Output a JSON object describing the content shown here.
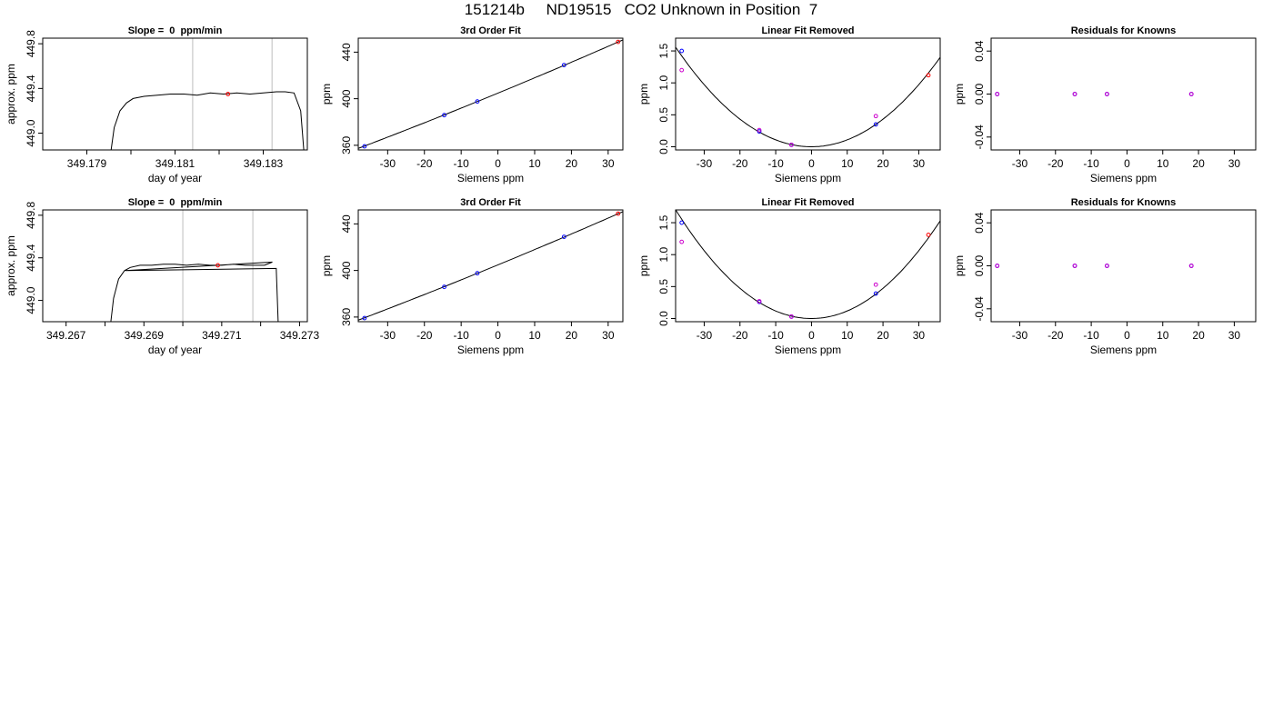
{
  "page": {
    "title": "151214b     ND19515   CO2 Unknown in Position  7"
  },
  "colors": {
    "known": "#0000ff",
    "unknown": "#ff0000",
    "residual": "#cc00cc",
    "fit_line": "#000000",
    "window_lines": "#c8c8c8"
  },
  "chart_data": [
    {
      "type": "line",
      "title": "Slope =  0  ppm/min",
      "xlabel": "day of year",
      "ylabel": "approx. ppm",
      "xlim": [
        349.178,
        349.184
      ],
      "ylim": [
        448.85,
        449.85
      ],
      "xticks": [
        349.179,
        349.181,
        349.183
      ],
      "xticks_minor": [
        349.18,
        349.182
      ],
      "yticks": [
        449.0,
        449.4,
        449.8
      ],
      "ytick_labels": [
        "449.0",
        "449.4",
        "449.8"
      ],
      "vlines": [
        349.1814,
        349.1832
      ],
      "series": [
        {
          "x": [
            349.17955,
            349.17962,
            349.17975,
            349.1799,
            349.18005,
            349.1803,
            349.1806,
            349.1809,
            349.1812,
            349.1815,
            349.1818,
            349.1821,
            349.1824,
            349.1827,
            349.183,
            349.1833,
            349.1835,
            349.1837,
            349.18385,
            349.18392
          ],
          "y": [
            448.85,
            449.05,
            449.2,
            449.27,
            449.31,
            449.33,
            449.34,
            449.35,
            449.35,
            449.34,
            449.36,
            449.35,
            449.36,
            449.35,
            449.36,
            449.37,
            449.37,
            449.36,
            449.2,
            448.85
          ]
        }
      ],
      "points": [
        {
          "x": 349.1822,
          "y": 449.35,
          "color": "unknown"
        }
      ]
    },
    {
      "type": "scatter",
      "title": "3rd Order Fit",
      "xlabel": "Siemens ppm",
      "ylabel": "ppm",
      "xlim": [
        -38,
        34
      ],
      "ylim": [
        356,
        452
      ],
      "xticks": [
        -30,
        -20,
        -10,
        0,
        10,
        20,
        30
      ],
      "yticks": [
        360,
        400,
        440
      ],
      "fit": {
        "coef": [
          404.8,
          1.3,
          0.00132,
          0
        ]
      },
      "points": [
        {
          "x": -36.3,
          "y": 359.1,
          "color": "known"
        },
        {
          "x": -14.6,
          "y": 385.9,
          "color": "known"
        },
        {
          "x": -5.6,
          "y": 397.6,
          "color": "known"
        },
        {
          "x": 18.0,
          "y": 428.9,
          "color": "known"
        },
        {
          "x": 32.7,
          "y": 448.8,
          "color": "unknown"
        }
      ]
    },
    {
      "type": "scatter",
      "title": "Linear Fit Removed",
      "xlabel": "Siemens ppm",
      "ylabel": "ppm",
      "xlim": [
        -38,
        36
      ],
      "ylim": [
        -0.05,
        1.7
      ],
      "xticks": [
        -30,
        -20,
        -10,
        0,
        10,
        20,
        30
      ],
      "yticks": [
        0.0,
        0.5,
        1.0,
        1.5
      ],
      "ytick_labels": [
        "0.0",
        "0.5",
        "1.0",
        "1.5"
      ],
      "fit": {
        "coef": [
          0,
          0,
          0.00108,
          0
        ]
      },
      "points": [
        {
          "x": -36.3,
          "y": 1.5,
          "color": "known"
        },
        {
          "x": -14.6,
          "y": 0.24,
          "color": "known"
        },
        {
          "x": -5.6,
          "y": 0.03,
          "color": "known"
        },
        {
          "x": 18.0,
          "y": 0.35,
          "color": "known"
        },
        {
          "x": -36.3,
          "y": 1.2,
          "color": "residual"
        },
        {
          "x": -14.6,
          "y": 0.26,
          "color": "residual"
        },
        {
          "x": -5.6,
          "y": 0.03,
          "color": "residual"
        },
        {
          "x": 18.0,
          "y": 0.48,
          "color": "residual"
        },
        {
          "x": 32.7,
          "y": 1.12,
          "color": "unknown"
        }
      ]
    },
    {
      "type": "scatter",
      "title": "Residuals for Knowns",
      "xlabel": "Siemens ppm",
      "ylabel": "ppm",
      "xlim": [
        -38,
        36
      ],
      "ylim": [
        -0.052,
        0.052
      ],
      "xticks": [
        -30,
        -20,
        -10,
        0,
        10,
        20,
        30
      ],
      "yticks": [
        -0.04,
        0.0,
        0.04
      ],
      "ytick_labels": [
        "-0.04",
        "0.00",
        "0.04"
      ],
      "points": [
        {
          "x": -36.3,
          "y": 0,
          "color": "known"
        },
        {
          "x": -14.6,
          "y": 0,
          "color": "known"
        },
        {
          "x": -5.6,
          "y": 0,
          "color": "known"
        },
        {
          "x": 18.0,
          "y": 0,
          "color": "known"
        },
        {
          "x": -36.3,
          "y": 0,
          "color": "residual"
        },
        {
          "x": -14.6,
          "y": 0,
          "color": "residual"
        },
        {
          "x": -5.6,
          "y": 0,
          "color": "residual"
        },
        {
          "x": 18.0,
          "y": 0,
          "color": "residual"
        }
      ]
    },
    {
      "type": "line",
      "title": "Slope =  0  ppm/min",
      "xlabel": "day of year",
      "ylabel": "approx. ppm",
      "xlim": [
        349.2664,
        349.2732
      ],
      "ylim": [
        448.8,
        449.85
      ],
      "xticks": [
        349.267,
        349.269,
        349.271,
        349.273
      ],
      "xticks_minor": [
        349.268,
        349.27,
        349.272
      ],
      "yticks": [
        449.0,
        449.4,
        449.8
      ],
      "ytick_labels": [
        "449.0",
        "449.4",
        "449.8"
      ],
      "vlines": [
        349.27,
        349.2718
      ],
      "series": [
        {
          "x": [
            349.26815,
            349.26822,
            349.26835,
            349.2685,
            349.26865,
            349.2689,
            349.2692,
            349.2695,
            349.2698,
            349.2701,
            349.2704,
            349.2707,
            349.271,
            349.2713,
            349.2716,
            349.2719,
            349.2721,
            349.2723,
            349.26852,
            349.2724,
            349.27245
          ],
          "y": [
            448.8,
            449.02,
            449.2,
            449.28,
            449.31,
            449.33,
            449.33,
            449.34,
            449.34,
            449.33,
            449.34,
            449.33,
            449.33,
            449.34,
            449.33,
            449.33,
            449.33,
            449.36,
            449.28,
            449.3,
            448.8
          ]
        }
      ],
      "points": [
        {
          "x": 349.2709,
          "y": 449.33,
          "color": "unknown"
        }
      ]
    },
    {
      "type": "scatter",
      "title": "3rd Order Fit",
      "xlabel": "Siemens ppm",
      "ylabel": "ppm",
      "xlim": [
        -38,
        34
      ],
      "ylim": [
        356,
        452
      ],
      "xticks": [
        -30,
        -20,
        -10,
        0,
        10,
        20,
        30
      ],
      "yticks": [
        360,
        400,
        440
      ],
      "fit": {
        "coef": [
          404.8,
          1.3,
          0.00132,
          0
        ]
      },
      "points": [
        {
          "x": -36.3,
          "y": 359.1,
          "color": "known"
        },
        {
          "x": -14.6,
          "y": 385.9,
          "color": "known"
        },
        {
          "x": -5.6,
          "y": 397.6,
          "color": "known"
        },
        {
          "x": 18.0,
          "y": 428.9,
          "color": "known"
        },
        {
          "x": 32.7,
          "y": 448.8,
          "color": "unknown"
        }
      ]
    },
    {
      "type": "scatter",
      "title": "Linear Fit Removed",
      "xlabel": "Siemens ppm",
      "ylabel": "ppm",
      "xlim": [
        -38,
        36
      ],
      "ylim": [
        -0.05,
        1.7
      ],
      "xticks": [
        -30,
        -20,
        -10,
        0,
        10,
        20,
        30
      ],
      "yticks": [
        0.0,
        0.5,
        1.0,
        1.5
      ],
      "ytick_labels": [
        "0.0",
        "0.5",
        "1.0",
        "1.5"
      ],
      "fit": {
        "coef": [
          0,
          0,
          0.00118,
          0
        ]
      },
      "points": [
        {
          "x": -36.3,
          "y": 1.5,
          "color": "known"
        },
        {
          "x": -14.6,
          "y": 0.26,
          "color": "known"
        },
        {
          "x": -5.6,
          "y": 0.03,
          "color": "known"
        },
        {
          "x": 18.0,
          "y": 0.39,
          "color": "known"
        },
        {
          "x": -36.3,
          "y": 1.2,
          "color": "residual"
        },
        {
          "x": -14.6,
          "y": 0.27,
          "color": "residual"
        },
        {
          "x": -5.6,
          "y": 0.03,
          "color": "residual"
        },
        {
          "x": 18.0,
          "y": 0.53,
          "color": "residual"
        },
        {
          "x": 32.7,
          "y": 1.31,
          "color": "unknown"
        }
      ]
    },
    {
      "type": "scatter",
      "title": "Residuals for Knowns",
      "xlabel": "Siemens ppm",
      "ylabel": "ppm",
      "xlim": [
        -38,
        36
      ],
      "ylim": [
        -0.052,
        0.052
      ],
      "xticks": [
        -30,
        -20,
        -10,
        0,
        10,
        20,
        30
      ],
      "yticks": [
        -0.04,
        0.0,
        0.04
      ],
      "ytick_labels": [
        "-0.04",
        "0.00",
        "0.04"
      ],
      "points": [
        {
          "x": -36.3,
          "y": 0,
          "color": "known"
        },
        {
          "x": -14.6,
          "y": 0,
          "color": "known"
        },
        {
          "x": -5.6,
          "y": 0,
          "color": "known"
        },
        {
          "x": 18.0,
          "y": 0,
          "color": "known"
        },
        {
          "x": -36.3,
          "y": 0,
          "color": "residual"
        },
        {
          "x": -14.6,
          "y": 0,
          "color": "residual"
        },
        {
          "x": -5.6,
          "y": 0,
          "color": "residual"
        },
        {
          "x": 18.0,
          "y": 0,
          "color": "residual"
        }
      ]
    }
  ]
}
